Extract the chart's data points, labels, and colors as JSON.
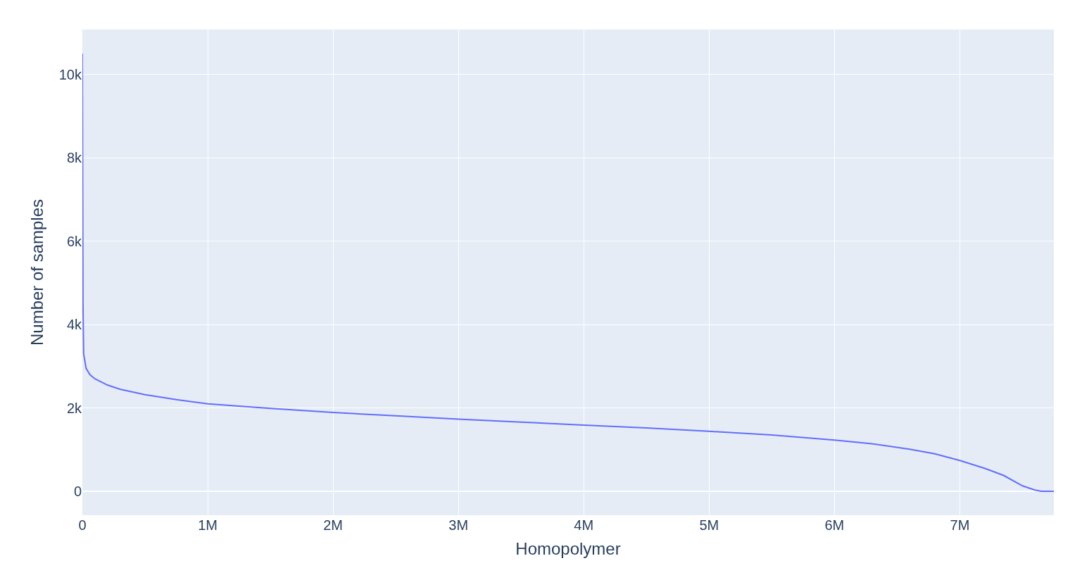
{
  "chart_data": {
    "type": "line",
    "xlabel": "Homopolymer",
    "ylabel": "Number of samples",
    "series": [
      {
        "color": "#636efa",
        "x": [
          0,
          1000,
          3000,
          5000,
          10000,
          30000,
          60000,
          100000,
          200000,
          300000,
          500000,
          750000,
          1000000,
          1500000,
          2000000,
          2500000,
          3000000,
          3500000,
          4000000,
          4500000,
          5000000,
          5500000,
          6000000,
          6300000,
          6600000,
          6800000,
          7000000,
          7200000,
          7350000,
          7500000,
          7600000,
          7650000,
          7750000
        ],
        "values": [
          10500,
          9300,
          7000,
          4500,
          3300,
          2950,
          2800,
          2700,
          2550,
          2450,
          2320,
          2200,
          2100,
          1990,
          1890,
          1810,
          1730,
          1660,
          1590,
          1520,
          1440,
          1350,
          1230,
          1140,
          1010,
          900,
          740,
          550,
          380,
          130,
          30,
          0,
          0
        ]
      }
    ],
    "xlim": [
      0,
      7750000
    ],
    "ylim": [
      -574,
      11080
    ],
    "xticks": [
      0,
      {
        "value": 1000000,
        "label": "1M"
      },
      {
        "value": 2000000,
        "label": "2M"
      },
      {
        "value": 3000000,
        "label": "3M"
      },
      {
        "value": 4000000,
        "label": "4M"
      },
      {
        "value": 5000000,
        "label": "5M"
      },
      {
        "value": 6000000,
        "label": "6M"
      },
      {
        "value": 7000000,
        "label": "7M"
      }
    ],
    "yticks": [
      0,
      {
        "value": 2000,
        "label": "2k"
      },
      {
        "value": 4000,
        "label": "4k"
      },
      {
        "value": 6000,
        "label": "6k"
      },
      {
        "value": 8000,
        "label": "8k"
      },
      {
        "value": 10000,
        "label": "10k"
      }
    ],
    "grid": true,
    "legend": false
  }
}
